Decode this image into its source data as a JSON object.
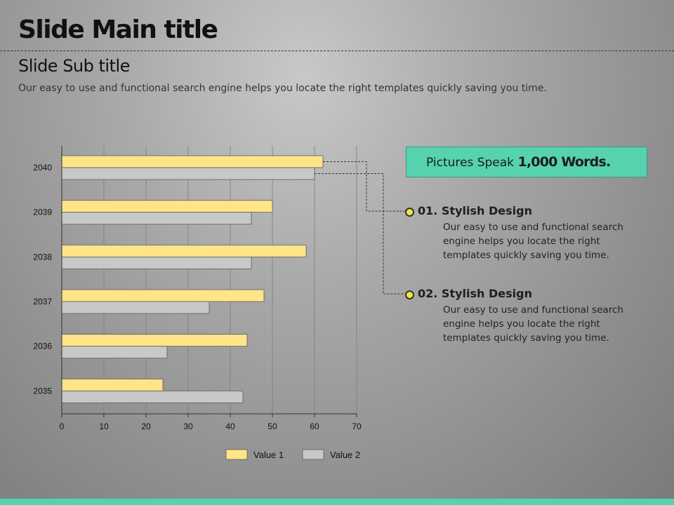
{
  "slide": {
    "title": "Slide Main title",
    "subtitle": "Slide Sub title",
    "description": "Our easy to use and functional search engine helps you locate the right templates quickly saving you time."
  },
  "callout": {
    "prefix": "Pictures Speak",
    "strong": "1,000 Words."
  },
  "items": [
    {
      "title": "01. Stylish Design",
      "text": "Our easy to use and functional search engine helps you locate the right templates quickly saving you time."
    },
    {
      "title": "02. Stylish Design",
      "text": "Our easy to use and functional search engine helps you locate the right templates quickly saving you time."
    }
  ],
  "colors": {
    "accent": "#56d2ae",
    "value1": "#ffe48a",
    "value2": "#c8c8c8"
  },
  "chart_data": {
    "type": "bar",
    "orientation": "horizontal",
    "categories": [
      "2040",
      "2039",
      "2038",
      "2037",
      "2036",
      "2035"
    ],
    "series": [
      {
        "name": "Value 1",
        "values": [
          62,
          50,
          58,
          48,
          44,
          24
        ]
      },
      {
        "name": "Value 2",
        "values": [
          60,
          45,
          45,
          35,
          25,
          43
        ]
      }
    ],
    "xlim": [
      0,
      70
    ],
    "xticks": [
      0,
      10,
      20,
      30,
      40,
      50,
      60,
      70
    ],
    "grid": true,
    "legend": "bottom"
  }
}
